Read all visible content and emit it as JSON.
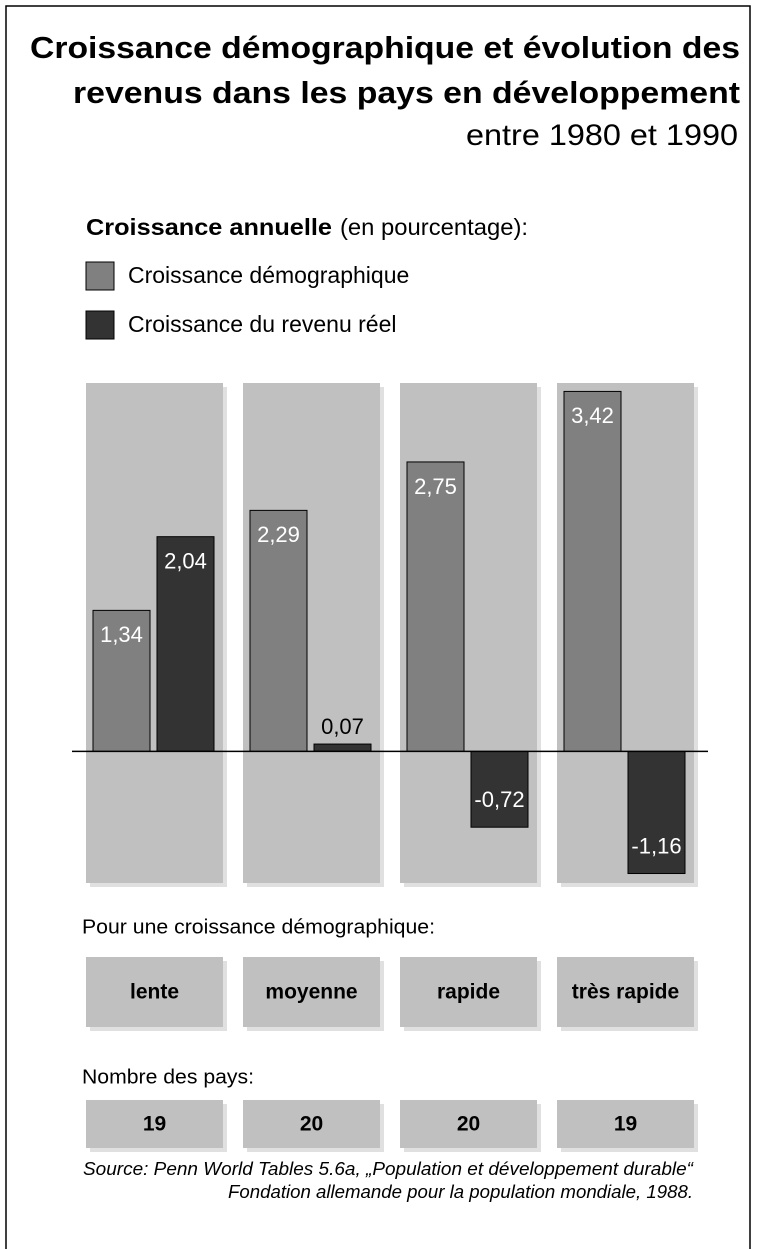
{
  "chart_data": {
    "type": "bar",
    "title": [
      "Croissance démographique et évolution des",
      "revenus dans les pays en développement"
    ],
    "subtitle": "entre 1980 et 1990",
    "legend_title": "Croissance annuelle",
    "legend_unit": "(en pourcentage):",
    "categories_heading": "Pour une croissance démographique:",
    "categories": [
      "lente",
      "moyenne",
      "rapide",
      "très rapide"
    ],
    "series": [
      {
        "name": "Croissance démographique",
        "color": "#808080",
        "values": [
          1.34,
          2.29,
          2.75,
          3.42
        ],
        "value_labels": [
          "1,34",
          "2,29",
          "2,75",
          "3,42"
        ]
      },
      {
        "name": "Croissance du revenu réel",
        "color": "#333333",
        "values": [
          2.04,
          0.07,
          -0.72,
          -1.16
        ],
        "value_labels": [
          "2,04",
          "0,07",
          "-0,72",
          "-1,16"
        ]
      }
    ],
    "ylim": [
      -1.25,
      3.5
    ],
    "counts_heading": "Nombre des pays:",
    "counts": [
      19,
      20,
      20,
      19
    ],
    "source": [
      "Source: Penn World Tables 5.6a, „Population et développement durable“",
      "Fondation allemande pour la population mondiale, 1988."
    ]
  }
}
